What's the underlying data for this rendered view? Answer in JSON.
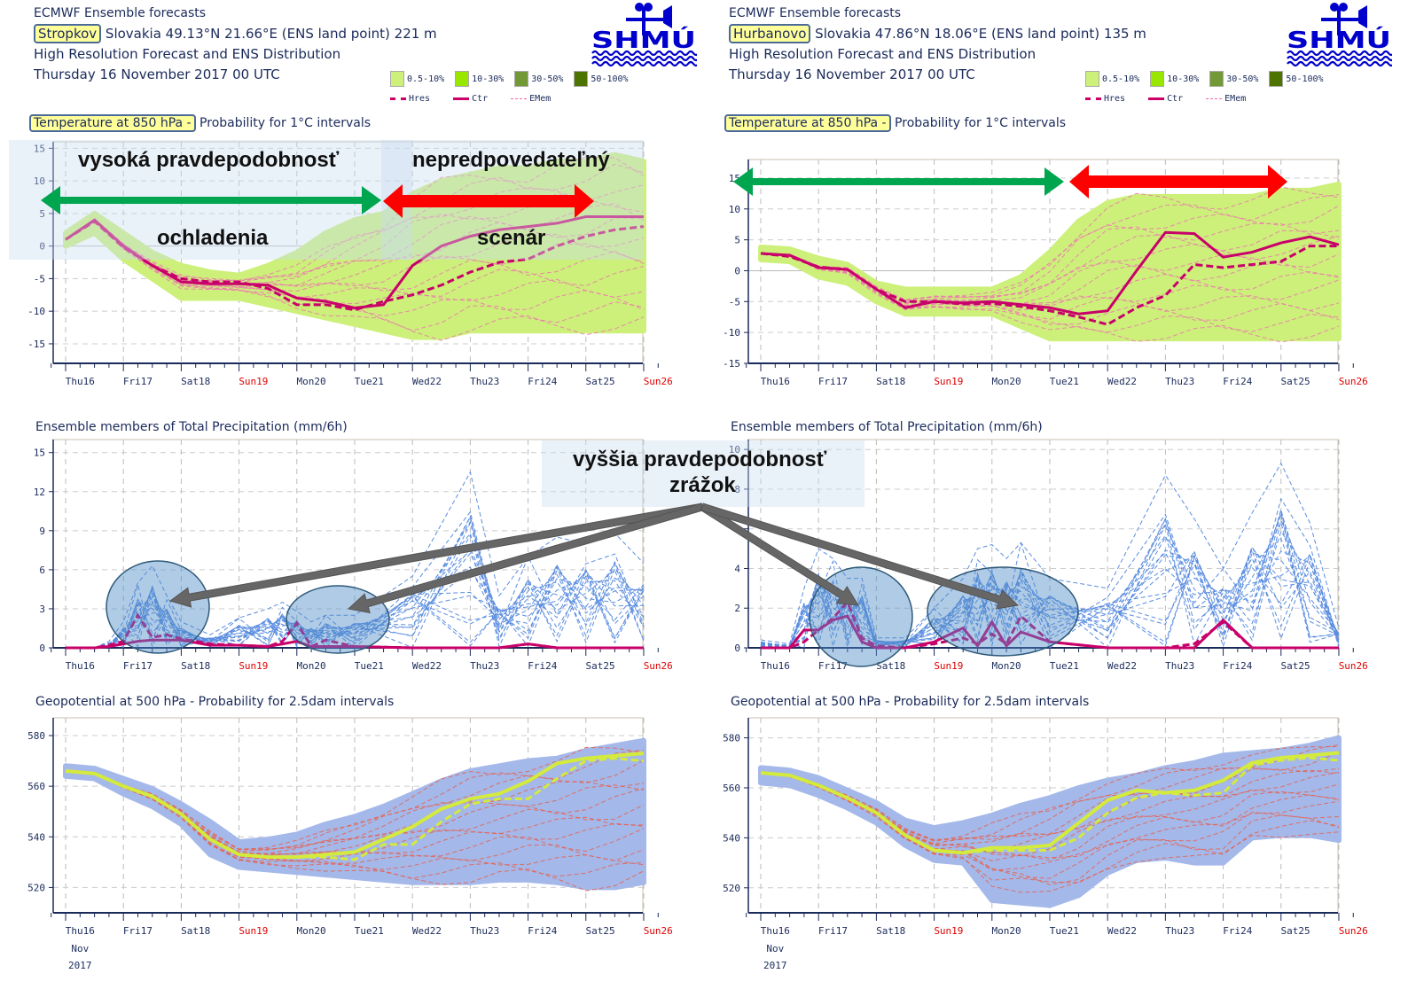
{
  "panels": [
    {
      "id": "left",
      "header": {
        "line1": "ECMWF Ensemble forecasts",
        "location": "Stropkov",
        "location_rest": " Slovakia 49.13°N 21.66°E (ENS land point) 221 m",
        "line3": "High Resolution Forecast and ENS Distribution",
        "line4": "Thursday 16 November 2017 00 UTC"
      },
      "temp_title_hl": "Temperature at 850 hPa -",
      "temp_title_rest": " Probability for 1°C intervals"
    },
    {
      "id": "right",
      "header": {
        "line1": "ECMWF Ensemble forecasts",
        "location": "Hurbanovo",
        "location_rest": " Slovakia 47.86°N 18.06°E (ENS land point) 135 m",
        "line3": "High Resolution Forecast and ENS Distribution",
        "line4": "Thursday 16 November 2017 00 UTC"
      },
      "temp_title_hl": "Temperature at 850 hPa -",
      "temp_title_rest": " Probability for 1°C intervals"
    }
  ],
  "logo": {
    "text": "SHMÚ",
    "icon": "weather-vane-waves-logo",
    "color": "#0000cc"
  },
  "legend": {
    "prob": [
      {
        "label": "0.5-10%",
        "color": "#ccf07a"
      },
      {
        "label": "10-30%",
        "color": "#99e600"
      },
      {
        "label": "30-50%",
        "color": "#739936"
      },
      {
        "label": "50-100%",
        "color": "#4d7300"
      }
    ],
    "lines": [
      {
        "label": "Hres",
        "style": "dashed-thick",
        "color": "#cc0066"
      },
      {
        "label": "Ctr",
        "style": "solid-thick",
        "color": "#cc0066"
      },
      {
        "label": "EMem",
        "style": "dashed-thin",
        "color": "#ee66aa"
      }
    ]
  },
  "precip_title": "Ensemble members of Total Precipitation (mm/6h)",
  "geo_title": "Geopotential at 500 hPa - Probability for 2.5dam intervals",
  "annotations": {
    "high_prob": "vysoká pravdepodobnosť",
    "cooling": "ochladenia",
    "unpredictable": "nepredpovedateľný",
    "scenario": "scenár",
    "precip_line1": "vyššia pravdepodobnosť",
    "precip_line2": "zrážok"
  },
  "xaxis": {
    "days": [
      "Thu16",
      "Fri17",
      "Sat18",
      "Sun19",
      "Mon20",
      "Tue21",
      "Wed22",
      "Thu23",
      "Fri24",
      "Sat25",
      "Sun26"
    ],
    "weekend": [
      "Sun19",
      "Sun26"
    ],
    "sub1": "Nov",
    "sub2": "2017"
  },
  "chart_data": [
    {
      "type": "line",
      "title": "Temperature at 850 hPa - Probability for 1°C intervals",
      "station": "Stropkov",
      "ylim": [
        -18,
        16
      ],
      "yticks": [
        15,
        10,
        5,
        0,
        -5,
        -10,
        -15
      ],
      "grid": true,
      "x_days": [
        0,
        0.5,
        1,
        1.5,
        2,
        2.5,
        3,
        3.5,
        4,
        4.5,
        5,
        5.5,
        6,
        6.5,
        7,
        7.5,
        8,
        8.5,
        9,
        9.5,
        10
      ],
      "series": [
        {
          "name": "Ctr",
          "values": [
            1,
            4,
            0,
            -3,
            -5.5,
            -5.8,
            -5.8,
            -6,
            -8,
            -8.5,
            -9.5,
            -9,
            -3,
            0,
            1.5,
            2.5,
            3,
            3.5,
            4.5,
            4.5,
            4.5
          ]
        },
        {
          "name": "Hres",
          "values": [
            1,
            3.8,
            -0.2,
            -3,
            -5,
            -5.5,
            -5.5,
            -6.5,
            -9,
            -9,
            -9.8,
            -8.5,
            -7.5,
            -6,
            -4,
            -2.5,
            -2,
            0,
            1.5,
            2.5,
            3
          ]
        }
      ],
      "ens_band_upper": [
        2,
        5,
        2,
        -1,
        -3,
        -4,
        -4.5,
        -3,
        -1,
        2,
        4,
        5,
        8,
        10,
        11,
        12,
        12,
        13,
        13,
        14,
        13
      ],
      "ens_band_lower": [
        0,
        2,
        -2,
        -5,
        -8,
        -8,
        -8,
        -9,
        -10,
        -11,
        -12,
        -13,
        -14,
        -14,
        -13,
        -13,
        -13,
        -13,
        -13,
        -13,
        -13
      ]
    },
    {
      "type": "line",
      "title": "Temperature at 850 hPa - Probability for 1°C intervals",
      "station": "Hurbanovo",
      "ylim": [
        -15,
        18
      ],
      "yticks": [
        15,
        10,
        5,
        0,
        -5,
        -10,
        -15
      ],
      "grid": true,
      "x_days": [
        0,
        0.5,
        1,
        1.5,
        2,
        2.5,
        3,
        3.5,
        4,
        4.5,
        5,
        5.5,
        6,
        6.5,
        7,
        7.5,
        8,
        8.5,
        9,
        9.5,
        10
      ],
      "series": [
        {
          "name": "Ctr",
          "values": [
            2.8,
            2.5,
            0.5,
            0.2,
            -3,
            -6,
            -5,
            -5.2,
            -5,
            -5.5,
            -6,
            -7,
            -6.5,
            0,
            6.2,
            6,
            2.2,
            3,
            4.5,
            5.5,
            4.2
          ]
        },
        {
          "name": "Hres",
          "values": [
            2.8,
            2.3,
            0.6,
            0.2,
            -3,
            -5,
            -5,
            -5.4,
            -5.3,
            -5.8,
            -6.5,
            -7.5,
            -8.7,
            -6,
            -4,
            1,
            0.5,
            1,
            1.5,
            4,
            4
          ]
        }
      ],
      "ens_band_upper": [
        3.8,
        3.5,
        2,
        1,
        -2,
        -3,
        -3,
        -3,
        -3,
        -1,
        3,
        8,
        11,
        12,
        12,
        12,
        12,
        12,
        13,
        13,
        14
      ],
      "ens_band_lower": [
        1.8,
        1.5,
        -1,
        -2,
        -5,
        -7,
        -7,
        -7,
        -7,
        -9,
        -11,
        -11,
        -11,
        -11,
        -11,
        -11,
        -11,
        -11,
        -11,
        -11,
        -11
      ]
    },
    {
      "type": "line",
      "title": "Ensemble members of Total Precipitation (mm/6h)",
      "station": "Stropkov",
      "ylim": [
        0,
        16
      ],
      "yticks": [
        15,
        12,
        9,
        6,
        3,
        0
      ],
      "grid": true,
      "x_days": [
        0,
        0.5,
        0.75,
        1,
        1.25,
        1.5,
        1.75,
        2,
        2.5,
        3,
        3.5,
        3.75,
        4,
        4.25,
        4.5,
        5,
        6,
        7,
        7.5,
        8,
        8.5,
        9,
        9.5,
        10
      ],
      "series": [
        {
          "name": "Ctr",
          "values": [
            0,
            0,
            0.1,
            0.3,
            0.5,
            0.6,
            0.6,
            0.6,
            0.2,
            0.2,
            0.1,
            0.3,
            0.5,
            0.1,
            0.1,
            0.1,
            0,
            0,
            0,
            0.3,
            0,
            0,
            0,
            0
          ]
        },
        {
          "name": "Hres",
          "values": [
            0,
            0,
            0.2,
            0.5,
            2.5,
            0.8,
            1,
            0.7,
            0.3,
            0.2,
            0.1,
            0.5,
            1.9,
            0.1,
            0.6,
            0.1,
            0,
            0,
            0,
            0.3,
            0,
            0,
            0,
            0
          ]
        },
        {
          "name": "EMem max",
          "values": [
            0,
            0,
            0.5,
            2,
            5,
            6.3,
            4,
            2,
            1,
            2.3,
            3,
            3.5,
            2.8,
            2,
            2.5,
            2.5,
            5.5,
            13.5,
            4,
            7,
            8.5,
            8,
            8.8,
            6.5
          ]
        }
      ]
    },
    {
      "type": "line",
      "title": "Ensemble members of Total Precipitation (mm/6h)",
      "station": "Hurbanovo",
      "ylim": [
        0,
        10.5
      ],
      "yticks": [
        10,
        8,
        6,
        4,
        2,
        0
      ],
      "grid": true,
      "x_days": [
        0,
        0.5,
        0.75,
        1,
        1.25,
        1.5,
        1.75,
        2,
        2.5,
        3,
        3.5,
        3.75,
        4,
        4.25,
        4.5,
        5,
        6,
        7,
        7.5,
        8,
        8.5,
        9,
        9.5,
        10
      ],
      "series": [
        {
          "name": "Ctr",
          "values": [
            0,
            0,
            0.9,
            0.9,
            1.4,
            1.6,
            0.3,
            0,
            0,
            0.3,
            1,
            0.1,
            1.3,
            0.1,
            0.8,
            0.3,
            0,
            0,
            0,
            1.4,
            0,
            0,
            0,
            0
          ]
        },
        {
          "name": "Hres",
          "values": [
            0,
            0,
            0.3,
            0.9,
            1.5,
            2.3,
            0.5,
            0.1,
            0,
            0.2,
            0.5,
            0.2,
            0.7,
            0.2,
            1.6,
            0.3,
            0,
            0,
            0.2,
            1.3,
            0,
            0,
            0,
            0
          ]
        },
        {
          "name": "EMem max",
          "values": [
            0.4,
            0.2,
            3,
            5,
            4.5,
            3.5,
            3.5,
            0.5,
            0.5,
            2,
            3.5,
            5,
            5.2,
            4.5,
            5.3,
            3.5,
            3,
            8.7,
            6.5,
            4,
            6.8,
            9.3,
            6.3,
            1
          ]
        }
      ]
    },
    {
      "type": "line",
      "title": "Geopotential at 500 hPa - Probability for 2.5dam intervals",
      "station": "Stropkov",
      "ylim": [
        510,
        587
      ],
      "yticks": [
        580,
        560,
        540,
        520
      ],
      "grid": true,
      "x_days": [
        0,
        0.5,
        1,
        1.5,
        2,
        2.5,
        3,
        3.5,
        4,
        4.5,
        5,
        5.5,
        6,
        6.5,
        7,
        7.5,
        8,
        8.5,
        9,
        9.5,
        10
      ],
      "series": [
        {
          "name": "Ctr",
          "values": [
            566,
            565,
            560,
            556,
            549,
            539,
            533,
            532,
            532,
            533,
            534,
            539,
            544,
            551,
            555,
            557,
            562,
            569,
            571,
            572,
            573
          ]
        },
        {
          "name": "Hres",
          "values": [
            566,
            565,
            560,
            556,
            549,
            539,
            533,
            532,
            532,
            532,
            531,
            537,
            537,
            546,
            553,
            555,
            555,
            563,
            570,
            571,
            570
          ]
        }
      ],
      "ens_band_upper": [
        568,
        567,
        563,
        559,
        553,
        546,
        538,
        539,
        541,
        545,
        548,
        552,
        557,
        562,
        566,
        568,
        570,
        571,
        574,
        576,
        578
      ],
      "ens_band_lower": [
        564,
        563,
        557,
        552,
        545,
        533,
        528,
        527,
        526,
        525,
        524,
        523,
        522,
        522,
        522,
        523,
        523,
        522,
        520,
        520,
        522
      ]
    },
    {
      "type": "line",
      "title": "Geopotential at 500 hPa - Probability for 2.5dam intervals",
      "station": "Hurbanovo",
      "ylim": [
        510,
        588
      ],
      "yticks": [
        580,
        560,
        540,
        520
      ],
      "grid": true,
      "x_days": [
        0,
        0.5,
        1,
        1.5,
        2,
        2.5,
        3,
        3.5,
        4,
        4.5,
        5,
        5.5,
        6,
        6.5,
        7,
        7.5,
        8,
        8.5,
        9,
        9.5,
        10
      ],
      "series": [
        {
          "name": "Ctr",
          "values": [
            566,
            565,
            561,
            556,
            550,
            541,
            535,
            534,
            536,
            536,
            537,
            546,
            555,
            559,
            558,
            559,
            563,
            570,
            572,
            573,
            574
          ]
        },
        {
          "name": "Hres",
          "values": [
            566,
            565,
            561,
            556,
            550,
            541,
            535,
            534,
            535,
            535,
            535,
            540,
            550,
            556,
            558,
            557,
            558,
            569,
            571,
            572,
            571
          ]
        }
      ],
      "ens_band_upper": [
        568,
        567,
        564,
        559,
        554,
        547,
        544,
        546,
        549,
        553,
        556,
        560,
        563,
        565,
        568,
        570,
        573,
        574,
        575,
        577,
        580
      ]
    }
  ]
}
